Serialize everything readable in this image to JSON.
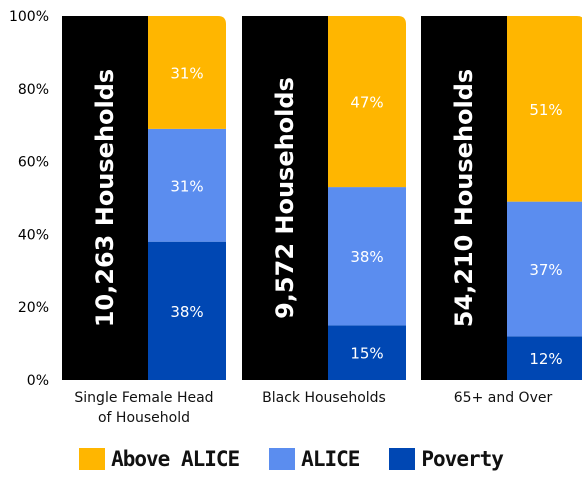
{
  "chart_data": {
    "type": "bar",
    "stacked": true,
    "categories": [
      "Single Female Head of Household",
      "Black Households",
      "65+ and Over"
    ],
    "category_lines": [
      [
        "Single Female Head",
        "of Household"
      ],
      [
        "Black Households"
      ],
      [
        "65+ and Over"
      ]
    ],
    "household_labels": [
      "10,263 Households",
      "9,572 Households",
      "54,210 Households"
    ],
    "series": [
      {
        "name": "Poverty",
        "color": "#0047b3",
        "values": [
          38,
          15,
          12
        ],
        "labels": [
          "38%",
          "15%",
          "12%"
        ]
      },
      {
        "name": "ALICE",
        "color": "#5b8def",
        "values": [
          31,
          38,
          37
        ],
        "labels": [
          "31%",
          "38%",
          "37%"
        ]
      },
      {
        "name": "Above ALICE",
        "color": "#ffb600",
        "values": [
          31,
          47,
          51
        ],
        "labels": [
          "31%",
          "47%",
          "51%"
        ]
      }
    ],
    "household_bar_color": "#000000",
    "yticks": [
      "0%",
      "20%",
      "40%",
      "60%",
      "80%",
      "100%"
    ],
    "ylim": [
      0,
      100
    ],
    "grid": false,
    "legend_position": "bottom",
    "legend": [
      {
        "label": "Above ALICE",
        "color": "#ffb600"
      },
      {
        "label": "ALICE",
        "color": "#5b8def"
      },
      {
        "label": "Poverty",
        "color": "#0047b3"
      }
    ]
  }
}
